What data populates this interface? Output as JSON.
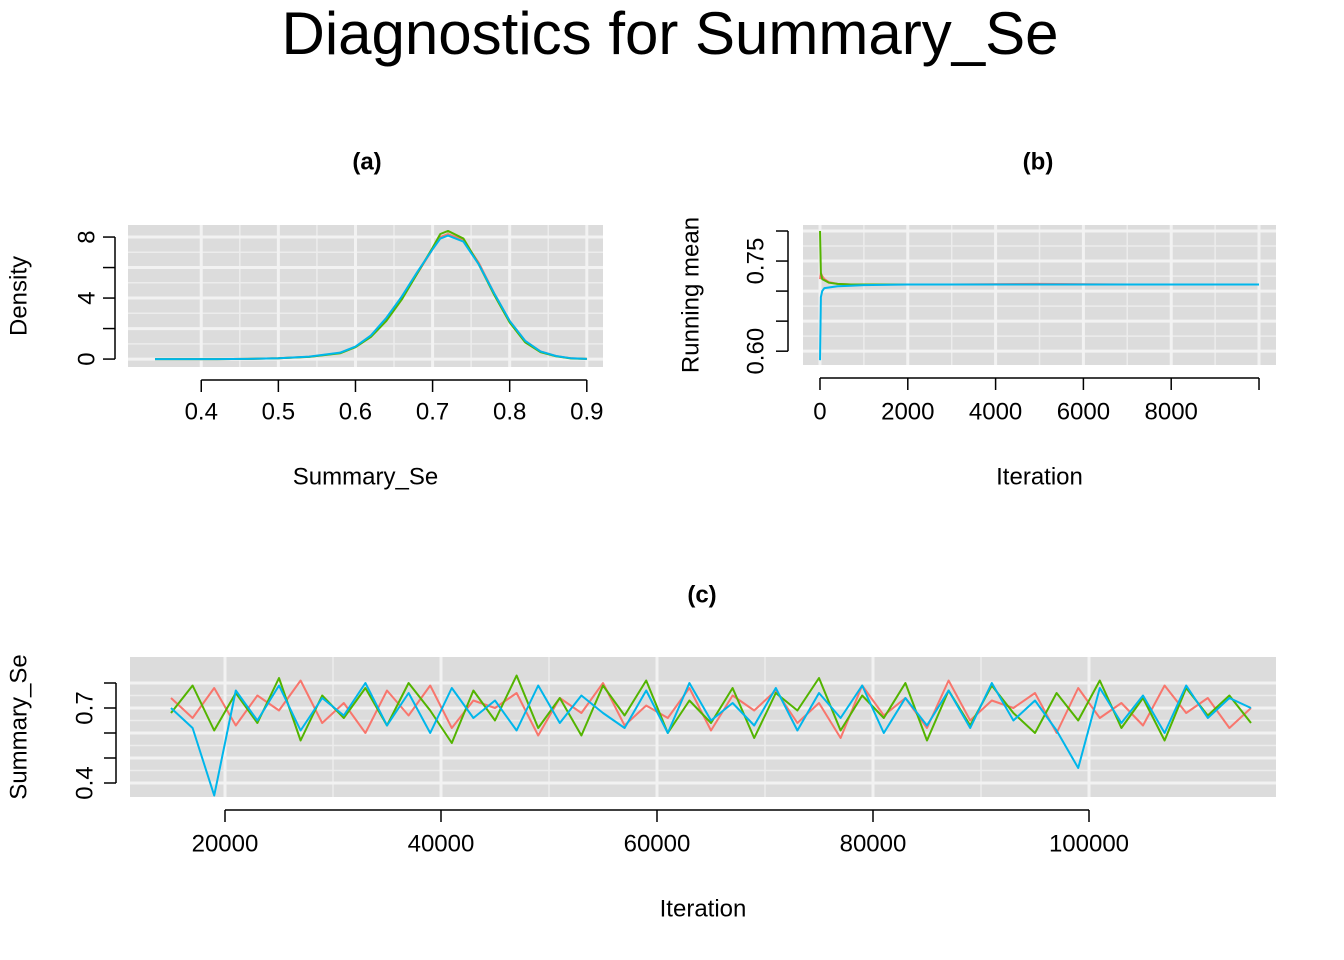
{
  "title": "Diagnostics for Summary_Se",
  "chart_data": [
    {
      "type": "line",
      "title": "(a)",
      "xlabel": "Summary_Se",
      "ylabel": "Density",
      "x": [
        0.34,
        0.38,
        0.42,
        0.46,
        0.5,
        0.54,
        0.58,
        0.6,
        0.62,
        0.64,
        0.66,
        0.68,
        0.7,
        0.71,
        0.72,
        0.74,
        0.76,
        0.78,
        0.8,
        0.82,
        0.84,
        0.86,
        0.88,
        0.9
      ],
      "series": [
        {
          "color": "#F8766D",
          "values": [
            0,
            0,
            0,
            0.01,
            0.05,
            0.15,
            0.4,
            0.8,
            1.5,
            2.6,
            4.0,
            5.6,
            7.2,
            8.0,
            8.2,
            7.8,
            6.3,
            4.3,
            2.5,
            1.2,
            0.5,
            0.2,
            0.05,
            0.01
          ]
        },
        {
          "color": "#53B400",
          "values": [
            0,
            0,
            0,
            0.01,
            0.05,
            0.14,
            0.38,
            0.78,
            1.45,
            2.5,
            3.9,
            5.6,
            7.3,
            8.2,
            8.4,
            7.9,
            6.2,
            4.2,
            2.4,
            1.1,
            0.45,
            0.18,
            0.04,
            0.01
          ]
        },
        {
          "color": "#00B6EB",
          "values": [
            0,
            0,
            0,
            0.01,
            0.05,
            0.16,
            0.42,
            0.82,
            1.55,
            2.7,
            4.1,
            5.7,
            7.2,
            7.9,
            8.1,
            7.7,
            6.2,
            4.3,
            2.5,
            1.2,
            0.5,
            0.2,
            0.05,
            0.01
          ]
        }
      ],
      "xlim": [
        0.305,
        0.921
      ],
      "ylim": [
        -0.52,
        8.79
      ],
      "xticks": [
        0.4,
        0.5,
        0.6,
        0.7,
        0.8,
        0.9
      ],
      "yticks": [
        0,
        4,
        8
      ],
      "minor_yticks": [
        2,
        6
      ],
      "grid": true
    },
    {
      "type": "line",
      "title": "(b)",
      "xlabel": "Iteration",
      "ylabel": "Running mean",
      "x": [
        1,
        20,
        50,
        100,
        200,
        400,
        700,
        1000,
        2000,
        3000,
        5000,
        7000,
        10000
      ],
      "series": [
        {
          "color": "#F8766D",
          "values": [
            0.72,
            0.73,
            0.725,
            0.72,
            0.715,
            0.712,
            0.711,
            0.711,
            0.711,
            0.711,
            0.712,
            0.711,
            0.711
          ]
        },
        {
          "color": "#53B400",
          "values": [
            0.8,
            0.73,
            0.72,
            0.718,
            0.714,
            0.712,
            0.711,
            0.711,
            0.711,
            0.711,
            0.711,
            0.711,
            0.711
          ]
        },
        {
          "color": "#00B6EB",
          "values": [
            0.585,
            0.69,
            0.7,
            0.705,
            0.706,
            0.708,
            0.709,
            0.71,
            0.711,
            0.711,
            0.711,
            0.711,
            0.711
          ]
        }
      ],
      "xlim": [
        -387,
        10387
      ],
      "ylim": [
        0.577,
        0.81
      ],
      "xticks": [
        0,
        2000,
        4000,
        6000,
        8000
      ],
      "minor_xticks": [
        10000
      ],
      "yticks": [
        {
          "value": 0.6,
          "label": "0.60"
        },
        0.75
      ],
      "minor_yticks": [
        0.65,
        0.7,
        0.8
      ],
      "grid": true
    },
    {
      "type": "line",
      "title": "(c)",
      "xlabel": "Iteration",
      "ylabel": "Summary_Se",
      "x": [
        15000,
        17000,
        19000,
        21000,
        23000,
        25000,
        27000,
        29000,
        31000,
        33000,
        35000,
        37000,
        39000,
        41000,
        43000,
        45000,
        47000,
        49000,
        51000,
        53000,
        55000,
        57000,
        59000,
        61000,
        63000,
        65000,
        67000,
        69000,
        71000,
        73000,
        75000,
        77000,
        79000,
        81000,
        83000,
        85000,
        87000,
        89000,
        91000,
        93000,
        95000,
        97000,
        99000,
        101000,
        103000,
        105000,
        107000,
        109000,
        111000,
        113000,
        115000
      ],
      "series": [
        {
          "color": "#F8766D",
          "values": [
            0.74,
            0.66,
            0.78,
            0.63,
            0.75,
            0.69,
            0.81,
            0.64,
            0.72,
            0.6,
            0.77,
            0.67,
            0.79,
            0.62,
            0.73,
            0.7,
            0.76,
            0.59,
            0.74,
            0.68,
            0.8,
            0.63,
            0.71,
            0.66,
            0.78,
            0.61,
            0.75,
            0.69,
            0.77,
            0.64,
            0.72,
            0.58,
            0.79,
            0.67,
            0.74,
            0.62,
            0.81,
            0.65,
            0.73,
            0.7,
            0.76,
            0.6,
            0.78,
            0.66,
            0.72,
            0.63,
            0.79,
            0.68,
            0.74,
            0.62,
            0.7
          ]
        },
        {
          "color": "#53B400",
          "values": [
            0.68,
            0.79,
            0.61,
            0.76,
            0.64,
            0.82,
            0.57,
            0.75,
            0.66,
            0.78,
            0.63,
            0.8,
            0.69,
            0.56,
            0.77,
            0.65,
            0.83,
            0.62,
            0.74,
            0.59,
            0.79,
            0.67,
            0.81,
            0.6,
            0.73,
            0.64,
            0.78,
            0.58,
            0.76,
            0.69,
            0.82,
            0.61,
            0.75,
            0.66,
            0.8,
            0.57,
            0.77,
            0.63,
            0.79,
            0.68,
            0.6,
            0.76,
            0.65,
            0.81,
            0.62,
            0.74,
            0.57,
            0.78,
            0.67,
            0.75,
            0.64
          ]
        },
        {
          "color": "#00B6EB",
          "values": [
            0.7,
            0.62,
            0.35,
            0.77,
            0.65,
            0.79,
            0.61,
            0.74,
            0.67,
            0.8,
            0.63,
            0.76,
            0.6,
            0.78,
            0.66,
            0.73,
            0.61,
            0.79,
            0.64,
            0.75,
            0.68,
            0.62,
            0.77,
            0.6,
            0.8,
            0.65,
            0.72,
            0.63,
            0.78,
            0.61,
            0.76,
            0.66,
            0.79,
            0.6,
            0.74,
            0.63,
            0.77,
            0.62,
            0.8,
            0.65,
            0.73,
            0.61,
            0.46,
            0.78,
            0.64,
            0.75,
            0.6,
            0.79,
            0.66,
            0.74,
            0.7
          ]
        }
      ],
      "xlim": [
        11204,
        117315
      ],
      "ylim": [
        0.344,
        0.904
      ],
      "xticks": [
        20000,
        40000,
        60000,
        80000,
        100000
      ],
      "yticks": [
        0.4,
        0.7
      ],
      "minor_yticks": [
        0.5,
        0.6,
        0.8
      ],
      "grid": true
    }
  ]
}
